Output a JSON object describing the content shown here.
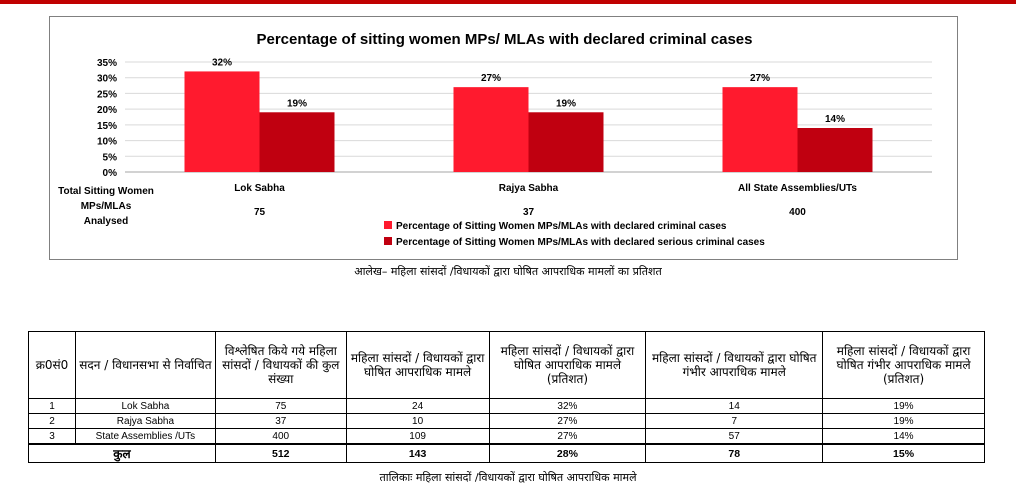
{
  "chart_data": {
    "type": "bar",
    "title": "Percentage of sitting women MPs/ MLAs with declared criminal cases",
    "categories": [
      "Lok Sabha",
      "Rajya Sabha",
      "All State Assemblies/UTs"
    ],
    "series": [
      {
        "name": "Percentage of Sitting Women MPs/MLAs with declared criminal cases",
        "values": [
          32,
          27,
          27
        ],
        "color": "#ff1a2e"
      },
      {
        "name": "Percentage of Sitting Women MPs/MLAs with declared serious criminal cases",
        "values": [
          19,
          19,
          14
        ],
        "color": "#c00010"
      }
    ],
    "data_labels": [
      [
        "32%",
        "27%",
        "27%"
      ],
      [
        "19%",
        "19%",
        "14%"
      ]
    ],
    "yticks": [
      "0%",
      "5%",
      "10%",
      "15%",
      "20%",
      "25%",
      "30%",
      "35%"
    ],
    "ylim": [
      0,
      35
    ],
    "analysed_label": "Total Sitting Women MPs/MLAs Analysed",
    "analysed_values": [
      "75",
      "37",
      "400"
    ],
    "grid": true,
    "legend_position": "bottom"
  },
  "captions": {
    "chart": "आलेख– महिला सांसदों /विधायकों द्वारा घोषित आपराधिक मामलों का प्रतिशत",
    "table": "तालिकाः महिला सांसदों /विधायकों द्वारा घोषित आपराधिक मामले"
  },
  "table": {
    "headers": [
      "क्र0सं0",
      "सदन / विधानसभा से निर्वाचित",
      "विश्लेषित किये गये महिला सांसदों / विधायकों की कुल संख्या",
      "महिला सांसदों / विधायकों द्वारा घोषित आपराधिक मामले",
      "महिला सांसदों / विधायकों द्वारा घोषित आपराधिक मामले (प्रतिशत)",
      "महिला सांसदों / विधायकों द्वारा घोषित गंभीर आपराधिक मामले",
      "महिला सांसदों / विधायकों द्वारा घोषित गंभीर आपराधिक मामले (प्रतिशत)"
    ],
    "rows": [
      [
        "1",
        "Lok Sabha",
        "75",
        "24",
        "32%",
        "14",
        "19%"
      ],
      [
        "2",
        "Rajya Sabha",
        "37",
        "10",
        "27%",
        "7",
        "19%"
      ],
      [
        "3",
        "State Assemblies /UTs",
        "400",
        "109",
        "27%",
        "57",
        "14%"
      ]
    ],
    "total": {
      "label": "कुल",
      "analysed": "512",
      "criminal": "143",
      "criminal_pct": "28%",
      "serious": "78",
      "serious_pct": "15%"
    }
  }
}
